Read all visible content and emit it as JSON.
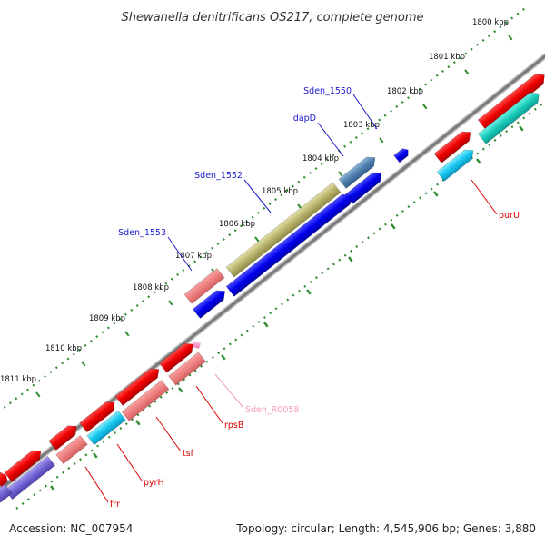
{
  "map": {
    "title": "Shewanella denitrificans OS217, complete genome",
    "accession": "Accession: NC_007954",
    "summary": "Topology: circular; Length: 4,545,906 bp; Genes: 3,880"
  },
  "colors": {
    "backbone": "#8a8a8a",
    "ruler": "#2e8b2e",
    "label_blue": "#1a1acc",
    "label_red": "#dd0000",
    "label_pink": "#f29ac4"
  },
  "ticks": [
    "1800 kbp",
    "1801 kbp",
    "1802 kbp",
    "1803 kbp",
    "1804 kbp",
    "1805 kbp",
    "1806 kbp",
    "1807 kbp",
    "1808 kbp",
    "1809 kbp",
    "1810 kbp",
    "1811 kbp"
  ],
  "gene_labels": [
    {
      "text": "Sden_1550",
      "kind": "blue"
    },
    {
      "text": "dapD",
      "kind": "blue"
    },
    {
      "text": "Sden_1552",
      "kind": "blue"
    },
    {
      "text": "Sden_1553",
      "kind": "blue"
    },
    {
      "text": "purU",
      "kind": "red"
    },
    {
      "text": "Sden_R0058",
      "kind": "pink"
    },
    {
      "text": "rpsB",
      "kind": "red"
    },
    {
      "text": "tsf",
      "kind": "red"
    },
    {
      "text": "pyrH",
      "kind": "red"
    },
    {
      "text": "frr",
      "kind": "red"
    }
  ]
}
